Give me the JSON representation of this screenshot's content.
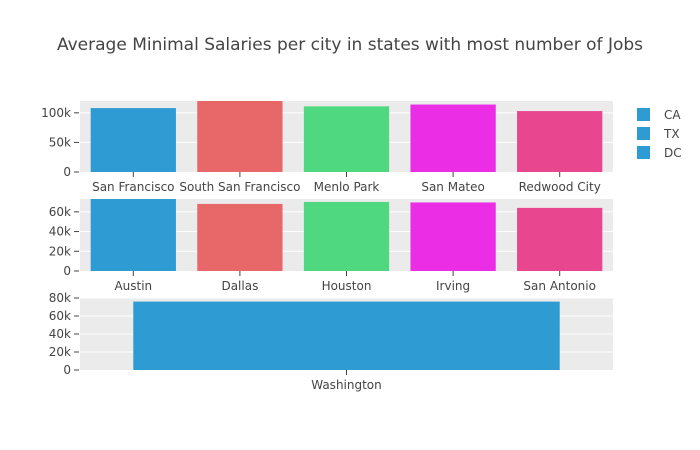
{
  "title": "Average Minimal Salaries per city in states with most number of Jobs",
  "colors": {
    "plot_bg": "#ebebeb",
    "grid": "#ffffff",
    "text": "#444444",
    "palette": [
      "#2e9bd3",
      "#e8686a",
      "#50d881",
      "#ec2de6",
      "#e8478f"
    ]
  },
  "legend": {
    "position": "top-right",
    "items": [
      {
        "label": "CA",
        "color": "#2e9bd3"
      },
      {
        "label": "TX",
        "color": "#2e9bd3"
      },
      {
        "label": "DC",
        "color": "#2e9bd3"
      }
    ]
  },
  "chart_data": [
    {
      "type": "bar",
      "state": "CA",
      "categories": [
        "San Francisco",
        "South San Francisco",
        "Menlo Park",
        "San Mateo",
        "Redwood City"
      ],
      "values": [
        108000,
        120000,
        111000,
        114000,
        103000
      ],
      "ylim": [
        0,
        120000
      ],
      "yticks": [
        0,
        50000,
        100000
      ],
      "ytick_labels": [
        "0",
        "50k",
        "100k"
      ],
      "grid": true
    },
    {
      "type": "bar",
      "state": "TX",
      "categories": [
        "Austin",
        "Dallas",
        "Houston",
        "Irving",
        "San Antonio"
      ],
      "values": [
        73000,
        68000,
        70000,
        69500,
        64000
      ],
      "ylim": [
        0,
        73000
      ],
      "yticks": [
        0,
        20000,
        40000,
        60000
      ],
      "ytick_labels": [
        "0",
        "20k",
        "40k",
        "60k"
      ],
      "grid": true
    },
    {
      "type": "bar",
      "state": "DC",
      "categories": [
        "Washington"
      ],
      "values": [
        76000
      ],
      "ylim": [
        0,
        80000
      ],
      "yticks": [
        0,
        20000,
        40000,
        60000,
        80000
      ],
      "ytick_labels": [
        "0",
        "20k",
        "40k",
        "60k",
        "80k"
      ],
      "grid": true
    }
  ]
}
